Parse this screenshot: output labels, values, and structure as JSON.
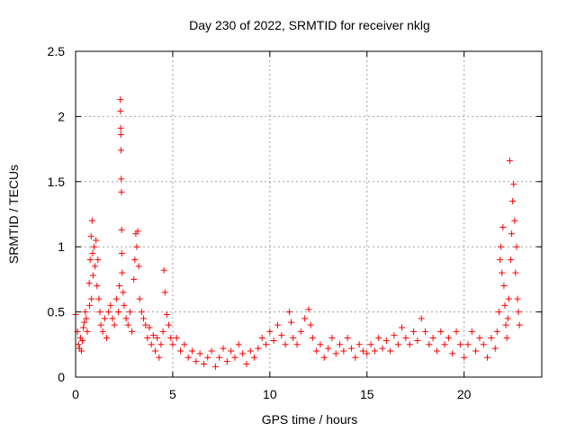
{
  "chart_data": {
    "type": "scatter",
    "title": "Day 230 of 2022, SRMTID for receiver nklg",
    "xlabel": "GPS time / hours",
    "ylabel": "SRMTID / TECUs",
    "xlim": [
      0,
      24
    ],
    "ylim": [
      0,
      2.5
    ],
    "xticks": [
      0,
      5,
      10,
      15,
      20
    ],
    "xtick_labels": [
      "0",
      "5",
      "10",
      "15",
      "20"
    ],
    "yticks": [
      0,
      0.5,
      1,
      1.5,
      2,
      2.5
    ],
    "ytick_labels": [
      "0",
      "0.5",
      "1",
      "1.5",
      "2",
      "2.5"
    ],
    "grid": true,
    "marker": "+",
    "color": "#ff0000",
    "series": [
      {
        "name": "SRMTID nklg",
        "points": [
          [
            0.0,
            0.48
          ],
          [
            0.1,
            0.35
          ],
          [
            0.15,
            0.25
          ],
          [
            0.2,
            0.22
          ],
          [
            0.25,
            0.3
          ],
          [
            0.3,
            0.2
          ],
          [
            0.35,
            0.28
          ],
          [
            0.4,
            0.38
          ],
          [
            0.45,
            0.42
          ],
          [
            0.5,
            0.5
          ],
          [
            0.55,
            0.45
          ],
          [
            0.6,
            0.35
          ],
          [
            0.7,
            0.72
          ],
          [
            0.72,
            0.55
          ],
          [
            0.75,
            0.9
          ],
          [
            0.8,
            1.08
          ],
          [
            0.82,
            0.6
          ],
          [
            0.85,
            1.2
          ],
          [
            0.88,
            0.95
          ],
          [
            0.9,
            0.78
          ],
          [
            0.95,
            1.0
          ],
          [
            1.0,
            0.85
          ],
          [
            1.05,
            1.05
          ],
          [
            1.1,
            0.7
          ],
          [
            1.15,
            0.9
          ],
          [
            1.2,
            0.6
          ],
          [
            1.25,
            0.5
          ],
          [
            1.3,
            0.4
          ],
          [
            1.4,
            0.35
          ],
          [
            1.5,
            0.45
          ],
          [
            1.6,
            0.3
          ],
          [
            1.7,
            0.5
          ],
          [
            1.8,
            0.55
          ],
          [
            1.9,
            0.45
          ],
          [
            2.0,
            0.4
          ],
          [
            2.1,
            0.6
          ],
          [
            2.2,
            0.5
          ],
          [
            2.25,
            0.7
          ],
          [
            2.3,
            2.13
          ],
          [
            2.31,
            2.04
          ],
          [
            2.32,
            1.91
          ],
          [
            2.33,
            1.86
          ],
          [
            2.34,
            1.74
          ],
          [
            2.35,
            1.52
          ],
          [
            2.36,
            1.42
          ],
          [
            2.37,
            1.13
          ],
          [
            2.38,
            0.95
          ],
          [
            2.4,
            0.8
          ],
          [
            2.45,
            0.65
          ],
          [
            2.5,
            0.55
          ],
          [
            2.6,
            0.45
          ],
          [
            2.7,
            0.4
          ],
          [
            2.8,
            0.5
          ],
          [
            2.9,
            0.35
          ],
          [
            3.0,
            0.75
          ],
          [
            3.05,
            0.9
          ],
          [
            3.1,
            1.1
          ],
          [
            3.15,
            1.0
          ],
          [
            3.2,
            1.12
          ],
          [
            3.25,
            0.85
          ],
          [
            3.3,
            0.6
          ],
          [
            3.4,
            0.5
          ],
          [
            3.5,
            0.45
          ],
          [
            3.6,
            0.4
          ],
          [
            3.7,
            0.3
          ],
          [
            3.8,
            0.38
          ],
          [
            3.9,
            0.25
          ],
          [
            4.0,
            0.32
          ],
          [
            4.1,
            0.2
          ],
          [
            4.2,
            0.3
          ],
          [
            4.3,
            0.15
          ],
          [
            4.4,
            0.25
          ],
          [
            4.5,
            0.35
          ],
          [
            4.55,
            0.82
          ],
          [
            4.6,
            0.65
          ],
          [
            4.7,
            0.48
          ],
          [
            4.8,
            0.4
          ],
          [
            4.9,
            0.3
          ],
          [
            5.0,
            0.25
          ],
          [
            5.2,
            0.3
          ],
          [
            5.4,
            0.2
          ],
          [
            5.6,
            0.25
          ],
          [
            5.8,
            0.15
          ],
          [
            6.0,
            0.2
          ],
          [
            6.2,
            0.12
          ],
          [
            6.4,
            0.18
          ],
          [
            6.6,
            0.1
          ],
          [
            6.8,
            0.15
          ],
          [
            7.0,
            0.2
          ],
          [
            7.2,
            0.08
          ],
          [
            7.4,
            0.15
          ],
          [
            7.6,
            0.22
          ],
          [
            7.8,
            0.12
          ],
          [
            8.0,
            0.2
          ],
          [
            8.2,
            0.15
          ],
          [
            8.4,
            0.25
          ],
          [
            8.6,
            0.18
          ],
          [
            8.8,
            0.1
          ],
          [
            9.0,
            0.2
          ],
          [
            9.2,
            0.15
          ],
          [
            9.4,
            0.22
          ],
          [
            9.6,
            0.3
          ],
          [
            9.8,
            0.25
          ],
          [
            10.0,
            0.35
          ],
          [
            10.2,
            0.28
          ],
          [
            10.4,
            0.4
          ],
          [
            10.6,
            0.32
          ],
          [
            10.8,
            0.25
          ],
          [
            11.0,
            0.5
          ],
          [
            11.1,
            0.42
          ],
          [
            11.2,
            0.3
          ],
          [
            11.4,
            0.25
          ],
          [
            11.6,
            0.35
          ],
          [
            11.8,
            0.45
          ],
          [
            12.0,
            0.52
          ],
          [
            12.1,
            0.4
          ],
          [
            12.2,
            0.3
          ],
          [
            12.4,
            0.2
          ],
          [
            12.6,
            0.25
          ],
          [
            12.8,
            0.15
          ],
          [
            13.0,
            0.22
          ],
          [
            13.2,
            0.3
          ],
          [
            13.4,
            0.18
          ],
          [
            13.6,
            0.25
          ],
          [
            13.8,
            0.2
          ],
          [
            14.0,
            0.3
          ],
          [
            14.2,
            0.22
          ],
          [
            14.4,
            0.15
          ],
          [
            14.6,
            0.25
          ],
          [
            14.8,
            0.2
          ],
          [
            15.0,
            0.18
          ],
          [
            15.2,
            0.25
          ],
          [
            15.4,
            0.2
          ],
          [
            15.6,
            0.3
          ],
          [
            15.8,
            0.22
          ],
          [
            16.0,
            0.28
          ],
          [
            16.2,
            0.2
          ],
          [
            16.4,
            0.32
          ],
          [
            16.6,
            0.25
          ],
          [
            16.8,
            0.38
          ],
          [
            17.0,
            0.3
          ],
          [
            17.2,
            0.25
          ],
          [
            17.4,
            0.35
          ],
          [
            17.6,
            0.28
          ],
          [
            17.8,
            0.45
          ],
          [
            18.0,
            0.35
          ],
          [
            18.2,
            0.25
          ],
          [
            18.4,
            0.3
          ],
          [
            18.6,
            0.2
          ],
          [
            18.8,
            0.35
          ],
          [
            19.0,
            0.25
          ],
          [
            19.2,
            0.3
          ],
          [
            19.4,
            0.18
          ],
          [
            19.6,
            0.35
          ],
          [
            19.8,
            0.25
          ],
          [
            20.0,
            0.15
          ],
          [
            20.2,
            0.25
          ],
          [
            20.4,
            0.35
          ],
          [
            20.6,
            0.2
          ],
          [
            20.8,
            0.3
          ],
          [
            21.0,
            0.25
          ],
          [
            21.2,
            0.15
          ],
          [
            21.4,
            0.3
          ],
          [
            21.6,
            0.22
          ],
          [
            21.7,
            0.35
          ],
          [
            21.8,
            0.5
          ],
          [
            21.85,
            0.9
          ],
          [
            21.9,
            1.0
          ],
          [
            21.95,
            0.8
          ],
          [
            22.0,
            1.15
          ],
          [
            22.05,
            0.7
          ],
          [
            22.1,
            0.55
          ],
          [
            22.15,
            0.4
          ],
          [
            22.2,
            0.3
          ],
          [
            22.25,
            0.45
          ],
          [
            22.3,
            0.6
          ],
          [
            22.35,
            1.66
          ],
          [
            22.4,
            0.9
          ],
          [
            22.45,
            1.1
          ],
          [
            22.5,
            1.35
          ],
          [
            22.55,
            1.48
          ],
          [
            22.6,
            1.2
          ],
          [
            22.65,
            0.8
          ],
          [
            22.7,
            1.0
          ],
          [
            22.75,
            0.6
          ],
          [
            22.8,
            0.5
          ],
          [
            22.85,
            0.4
          ]
        ]
      }
    ]
  }
}
